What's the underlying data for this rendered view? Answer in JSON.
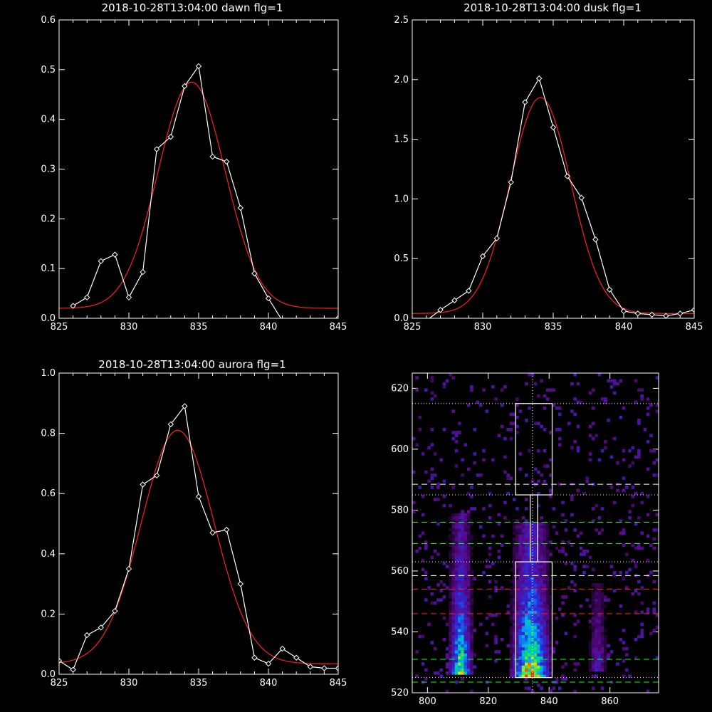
{
  "colors": {
    "background": "#000000",
    "axis": "#ffffff",
    "data": "#ffffff",
    "fit": "#ff2020"
  },
  "chart_data": [
    {
      "type": "line",
      "title": "2018-10-28T13:04:00 dawn flg=1",
      "xlim": [
        825,
        845
      ],
      "ylim": [
        0,
        0.6
      ],
      "xticks": [
        "825",
        "830",
        "835",
        "840",
        "845"
      ],
      "yticks": [
        "0.0",
        "0.1",
        "0.2",
        "0.3",
        "0.4",
        "0.5",
        "0.6"
      ],
      "series": [
        {
          "style": "data",
          "x": [
            826,
            827,
            828,
            829,
            830,
            831,
            832,
            833,
            834,
            835,
            836,
            837,
            838,
            839,
            840,
            841,
            842,
            843,
            844,
            845
          ],
          "y": [
            0.025,
            0.042,
            0.115,
            0.128,
            0.042,
            0.093,
            0.34,
            0.365,
            0.467,
            0.507,
            0.325,
            0.315,
            0.222,
            0.09,
            0.04,
            -0.005,
            -0.01,
            -0.008,
            -0.004,
            0.0
          ]
        },
        {
          "style": "fit",
          "model": "gaussian",
          "amplitude": 0.455,
          "center": 834.5,
          "sigma": 2.4,
          "offset": 0.02
        }
      ]
    },
    {
      "type": "line",
      "title": "2018-10-28T13:04:00 dusk flg=1",
      "xlim": [
        825,
        845
      ],
      "ylim": [
        0,
        2.5
      ],
      "xticks": [
        "825",
        "830",
        "835",
        "840",
        "845"
      ],
      "yticks": [
        "0.0",
        "0.5",
        "1.0",
        "1.5",
        "2.0",
        "2.5"
      ],
      "series": [
        {
          "style": "data",
          "x": [
            826,
            827,
            828,
            829,
            830,
            831,
            832,
            833,
            834,
            835,
            836,
            837,
            838,
            839,
            840,
            841,
            842,
            843,
            844,
            845
          ],
          "y": [
            -0.02,
            0.07,
            0.15,
            0.23,
            0.52,
            0.67,
            1.14,
            1.81,
            2.01,
            1.6,
            1.19,
            1.01,
            0.66,
            0.24,
            0.06,
            0.04,
            0.03,
            0.02,
            0.04,
            0.07
          ]
        },
        {
          "style": "fit",
          "model": "gaussian",
          "amplitude": 1.81,
          "center": 834.1,
          "sigma": 2.15,
          "offset": 0.04
        }
      ]
    },
    {
      "type": "line",
      "title": "2018-10-28T13:04:00 aurora flg=1",
      "xlim": [
        825,
        845
      ],
      "ylim": [
        0,
        1.0
      ],
      "xticks": [
        "825",
        "830",
        "835",
        "840",
        "845"
      ],
      "yticks": [
        "0.0",
        "0.2",
        "0.4",
        "0.6",
        "0.8",
        "1.0"
      ],
      "series": [
        {
          "style": "data",
          "x": [
            825,
            826,
            827,
            828,
            829,
            830,
            831,
            832,
            833,
            834,
            835,
            836,
            837,
            838,
            839,
            840,
            841,
            842,
            843,
            844,
            845
          ],
          "y": [
            0.045,
            0.015,
            0.13,
            0.155,
            0.21,
            0.35,
            0.63,
            0.66,
            0.83,
            0.89,
            0.59,
            0.47,
            0.48,
            0.3,
            0.055,
            0.035,
            0.085,
            0.055,
            0.025,
            0.02,
            0.02
          ]
        },
        {
          "style": "fit",
          "model": "gaussian",
          "amplitude": 0.775,
          "center": 833.5,
          "sigma": 2.6,
          "offset": 0.035
        }
      ]
    },
    {
      "type": "heatmap",
      "title": "",
      "xlim": [
        795,
        876
      ],
      "ylim": [
        520,
        625
      ],
      "xticks": [
        "800",
        "820",
        "840",
        "860"
      ],
      "yticks": [
        "520",
        "540",
        "560",
        "580",
        "600",
        "620"
      ],
      "colormap": [
        "#000000",
        "#5a0a8c",
        "#2a2adc",
        "#00aaff",
        "#00e070",
        "#f0f000",
        "#ff3000"
      ],
      "emission_columns": [
        {
          "x_center": 811,
          "x_halfwidth": 3,
          "y_range": [
            526,
            578
          ],
          "peak_y": 529,
          "peak": 0.82
        },
        {
          "x_center": 834,
          "x_halfwidth": 6,
          "y_range": [
            525,
            575
          ],
          "peak_y": 529,
          "peak": 1.0
        },
        {
          "x_center": 856,
          "x_halfwidth": 2,
          "y_range": [
            527,
            555
          ],
          "peak_y": 529,
          "peak": 0.32
        }
      ],
      "boxes": [
        {
          "x": [
            829,
            841
          ],
          "y": [
            585,
            615
          ]
        },
        {
          "x": [
            833.8,
            836.2
          ],
          "y": [
            563,
            585
          ]
        },
        {
          "x": [
            829,
            841
          ],
          "y": [
            525,
            563
          ]
        }
      ],
      "vertical_line": {
        "x": 834.5,
        "style": "dotted",
        "color": "#ffffff"
      },
      "hlines": [
        {
          "y": 615,
          "color": "#ffffff",
          "style": "dotted"
        },
        {
          "y": 588.5,
          "color": "#ffffff",
          "style": "dashed"
        },
        {
          "y": 585,
          "color": "#ffffff",
          "style": "dotted"
        },
        {
          "y": 576,
          "color": "#00ff00",
          "style": "dashed"
        },
        {
          "y": 569,
          "color": "#00ff00",
          "style": "dashed"
        },
        {
          "y": 563,
          "color": "#ffffff",
          "style": "dotted"
        },
        {
          "y": 558.5,
          "color": "#ffffff",
          "style": "dashed"
        },
        {
          "y": 554,
          "color": "#ff2020",
          "style": "dashed"
        },
        {
          "y": 546,
          "color": "#ff2020",
          "style": "dashed"
        },
        {
          "y": 531,
          "color": "#00ff00",
          "style": "dashed"
        },
        {
          "y": 525,
          "color": "#ffffff",
          "style": "dotted"
        },
        {
          "y": 523.5,
          "color": "#00ff00",
          "style": "dashed"
        }
      ]
    }
  ]
}
